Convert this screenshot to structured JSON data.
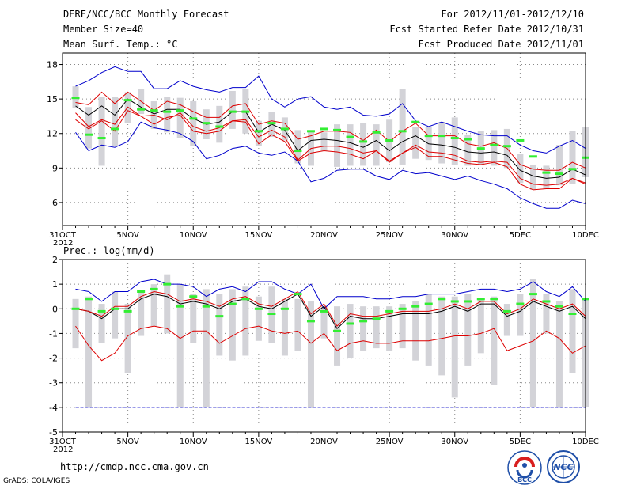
{
  "header": {
    "title": "DERF/NCC/BCC Monthly Forecast",
    "member_size": "Member Size=40",
    "variable": "Mean Surf. Temp.: °C",
    "period": "For 2012/11/01-2012/12/10",
    "start_date": "Fcst Started Refer Date 2012/10/31",
    "produced_date": "Fcst Produced Date 2012/11/01"
  },
  "footer": {
    "url": "http://cmdp.ncc.cma.gov.cn",
    "credit": "GrADS: COLA/IGES",
    "logo_left_text": "BCC",
    "logo_right_text": "NCC"
  },
  "colors": {
    "envelope": "#0000cc",
    "spread": "#dd0000",
    "mean": "#000000",
    "box": "#d3d3d8",
    "obs": "#33ee33",
    "grid": "#888888",
    "baseline": "#0000cc"
  },
  "chart_data": [
    {
      "type": "line",
      "title": "Mean Surf. Temp.: °C",
      "x_ticks": [
        "31OCT",
        "5NOV",
        "10NOV",
        "15NOV",
        "20NOV",
        "25NOV",
        "30NOV",
        "5DEC",
        "10DEC"
      ],
      "x_tick_days": [
        0,
        5,
        10,
        15,
        20,
        25,
        30,
        35,
        40
      ],
      "x_sub_label": "2012",
      "xlim": [
        0,
        40
      ],
      "ylim": [
        4,
        19
      ],
      "y_ticks": [
        6,
        9,
        12,
        15,
        18
      ],
      "day_start": 1,
      "series": [
        {
          "name": "max",
          "values": [
            12.1,
            10.5,
            11.0,
            10.8,
            11.3,
            13.0,
            12.5,
            12.3,
            12.0,
            11.3,
            9.8,
            10.1,
            10.7,
            10.9,
            10.3,
            10.1,
            10.4,
            9.6,
            7.8,
            8.1,
            8.8,
            8.9,
            8.9,
            8.3,
            8.0,
            8.8,
            8.5,
            8.6,
            8.3,
            8.0,
            8.3,
            7.9,
            7.6,
            7.2,
            6.4,
            5.9,
            5.5,
            5.5,
            6.2,
            5.9
          ]
        },
        {
          "name": "upper",
          "values": [
            16.1,
            16.6,
            17.3,
            17.8,
            17.4,
            17.4,
            15.9,
            15.9,
            16.6,
            16.1,
            15.8,
            15.6,
            16.0,
            16.0,
            17.0,
            15.0,
            14.3,
            15.0,
            15.2,
            14.3,
            14.1,
            14.3,
            13.6,
            13.5,
            13.7,
            14.6,
            13.1,
            12.6,
            13.0,
            12.6,
            12.2,
            11.9,
            11.8,
            11.8,
            11.0,
            10.5,
            10.3,
            10.9,
            11.4,
            10.7
          ]
        },
        {
          "name": "lower",
          "values": [
            13.2,
            12.4,
            13.1,
            12.2,
            14.0,
            13.5,
            12.8,
            13.4,
            13.6,
            12.2,
            12.0,
            12.2,
            13.1,
            13.0,
            11.1,
            11.9,
            11.3,
            9.6,
            10.3,
            10.5,
            10.4,
            10.2,
            9.8,
            10.5,
            9.5,
            10.3,
            10.8,
            10.0,
            10.0,
            9.7,
            9.4,
            9.3,
            9.5,
            9.1,
            7.6,
            7.1,
            7.2,
            7.2,
            8.1,
            7.6
          ]
        },
        {
          "name": "mean",
          "values": [
            14.4,
            13.6,
            14.4,
            13.6,
            15.0,
            14.3,
            13.7,
            14.1,
            14.1,
            13.3,
            12.8,
            13.0,
            13.9,
            13.9,
            12.1,
            12.8,
            12.3,
            10.5,
            11.4,
            11.5,
            11.4,
            11.2,
            10.8,
            11.4,
            10.5,
            11.3,
            11.8,
            11.1,
            11.0,
            10.8,
            10.4,
            10.3,
            10.4,
            10.1,
            8.8,
            8.3,
            8.1,
            8.2,
            8.9,
            8.4
          ]
        },
        {
          "name": "upper_spread",
          "values": [
            14.7,
            14.5,
            15.6,
            14.6,
            15.6,
            14.8,
            14.0,
            14.8,
            14.5,
            13.9,
            13.4,
            13.4,
            14.4,
            14.6,
            12.8,
            13.1,
            12.9,
            11.5,
            11.8,
            12.2,
            12.2,
            12.1,
            11.4,
            12.3,
            11.3,
            12.2,
            12.9,
            11.8,
            11.8,
            11.8,
            11.1,
            10.9,
            11.2,
            10.7,
            9.3,
            8.9,
            8.8,
            8.8,
            9.5,
            9.0
          ]
        },
        {
          "name": "lower_spread",
          "values": [
            13.8,
            12.6,
            13.2,
            12.8,
            14.3,
            13.5,
            13.6,
            13.2,
            13.8,
            12.6,
            12.2,
            12.5,
            13.1,
            13.2,
            11.7,
            12.3,
            11.7,
            9.7,
            10.7,
            10.9,
            10.9,
            10.7,
            10.3,
            10.5,
            9.6,
            10.3,
            11.0,
            10.4,
            10.3,
            10.1,
            9.6,
            9.5,
            9.6,
            9.5,
            8.1,
            7.6,
            7.5,
            7.6,
            8.1,
            7.7
          ]
        }
      ],
      "boxes": {
        "low": [
          14.2,
          10.7,
          9.2,
          10.9,
          12.9,
          13.7,
          12.4,
          12.1,
          11.6,
          10.9,
          11.5,
          11.2,
          12.4,
          12.0,
          10.9,
          11.7,
          11.4,
          9.4,
          9.2,
          10.5,
          9.1,
          9.2,
          9.2,
          9.2,
          9.5,
          9.3,
          9.8,
          9.7,
          9.4,
          9.3,
          9.2,
          9.3,
          9.2,
          9.0,
          7.7,
          7.1,
          7.2,
          7.5,
          7.6,
          8.2
        ],
        "high": [
          16.1,
          14.3,
          15.2,
          15.2,
          15.6,
          15.9,
          14.8,
          15.2,
          15.1,
          14.8,
          14.1,
          14.4,
          15.7,
          15.9,
          13.1,
          13.9,
          13.4,
          12.3,
          12.3,
          12.1,
          12.8,
          12.8,
          12.9,
          12.8,
          13.2,
          15.9,
          12.6,
          12.6,
          13.0,
          13.4,
          11.9,
          12.2,
          12.3,
          12.4,
          10.2,
          9.3,
          9.2,
          11.0,
          12.2,
          12.6
        ]
      },
      "observations": [
        15.1,
        11.9,
        11.6,
        12.4,
        14.9,
        14.1,
        14.0,
        13.9,
        14.0,
        13.3,
        12.9,
        12.6,
        13.9,
        13.9,
        12.2,
        12.9,
        12.4,
        10.5,
        12.2,
        12.4,
        12.3,
        11.7,
        11.3,
        12.1,
        11.4,
        12.2,
        13.0,
        11.8,
        11.8,
        11.6,
        11.5,
        10.7,
        11.0,
        10.9,
        11.4,
        10.0,
        8.6,
        8.5,
        8.9,
        9.9
      ]
    },
    {
      "type": "line",
      "title": "Prec.: log(mm/d)",
      "x_ticks": [
        "31OCT",
        "5NOV",
        "10NOV",
        "15NOV",
        "20NOV",
        "25NOV",
        "30NOV",
        "5DEC",
        "10DEC"
      ],
      "x_tick_days": [
        0,
        5,
        10,
        15,
        20,
        25,
        30,
        35,
        40
      ],
      "x_sub_label": "2012",
      "xlim": [
        0,
        40
      ],
      "ylim": [
        -5,
        2
      ],
      "y_ticks": [
        -5,
        -4,
        -3,
        -2,
        -1,
        0,
        1,
        2
      ],
      "day_start": 1,
      "baseline": -4,
      "series": [
        {
          "name": "max",
          "values": [
            0.8,
            0.7,
            0.3,
            0.7,
            0.7,
            1.1,
            1.2,
            1.0,
            1.0,
            0.9,
            0.5,
            0.8,
            0.9,
            0.7,
            1.1,
            1.1,
            0.8,
            0.6,
            1.0,
            0.0,
            0.5,
            0.5,
            0.5,
            0.4,
            0.4,
            0.5,
            0.5,
            0.6,
            0.6,
            0.6,
            0.7,
            0.8,
            0.8,
            0.7,
            0.8,
            1.1,
            0.7,
            0.5,
            0.9,
            0.3
          ]
        },
        {
          "name": "mean",
          "values": [
            0.0,
            -0.1,
            -0.4,
            0.0,
            0.0,
            0.4,
            0.6,
            0.5,
            0.2,
            0.3,
            0.2,
            0.0,
            0.3,
            0.4,
            0.1,
            0.0,
            0.3,
            0.6,
            -0.3,
            0.1,
            -0.8,
            -0.3,
            -0.4,
            -0.4,
            -0.3,
            -0.2,
            -0.2,
            -0.2,
            -0.1,
            0.1,
            -0.1,
            0.2,
            0.2,
            -0.3,
            -0.1,
            0.3,
            0.1,
            -0.1,
            0.1,
            -0.4
          ]
        },
        {
          "name": "upper_spread",
          "values": [
            0.0,
            -0.1,
            -0.3,
            0.1,
            0.1,
            0.5,
            0.7,
            0.6,
            0.3,
            0.4,
            0.3,
            0.1,
            0.4,
            0.5,
            0.2,
            0.1,
            0.4,
            0.7,
            -0.2,
            0.2,
            -0.7,
            -0.2,
            -0.3,
            -0.3,
            -0.2,
            -0.1,
            -0.1,
            -0.1,
            0.0,
            0.2,
            0.0,
            0.3,
            0.3,
            -0.2,
            0.0,
            0.4,
            0.2,
            0.0,
            0.2,
            -0.3
          ]
        },
        {
          "name": "min",
          "values": [
            -0.7,
            -1.5,
            -2.1,
            -1.8,
            -1.1,
            -0.8,
            -0.7,
            -0.8,
            -1.2,
            -0.9,
            -0.9,
            -1.4,
            -1.1,
            -0.8,
            -0.7,
            -0.9,
            -1.0,
            -0.9,
            -1.4,
            -1.0,
            -1.7,
            -1.4,
            -1.3,
            -1.4,
            -1.4,
            -1.3,
            -1.3,
            -1.3,
            -1.2,
            -1.1,
            -1.1,
            -1.0,
            -0.8,
            -1.7,
            -1.5,
            -1.3,
            -0.9,
            -1.2,
            -1.8,
            -1.5
          ]
        }
      ],
      "boxes": {
        "low": [
          -1.6,
          -4.0,
          -1.4,
          -1.2,
          -2.6,
          -1.1,
          -0.7,
          -1.0,
          -4.0,
          -1.4,
          -4.0,
          -1.9,
          -2.1,
          -1.9,
          -1.3,
          -1.4,
          -1.9,
          -1.7,
          -4.0,
          -1.2,
          -2.3,
          -2.0,
          -1.7,
          -1.6,
          -1.7,
          -1.6,
          -2.1,
          -2.3,
          -2.7,
          -3.6,
          -2.3,
          -1.8,
          -3.1,
          -1.1,
          -1.1,
          -4.0,
          -1.0,
          -4.0,
          -2.6,
          -4.0
        ],
        "high": [
          0.4,
          0.5,
          0.2,
          0.7,
          0.2,
          0.7,
          1.0,
          1.4,
          1.0,
          0.6,
          0.8,
          0.6,
          0.8,
          0.9,
          0.5,
          0.9,
          0.4,
          0.4,
          0.3,
          0.1,
          0.1,
          0.2,
          0.1,
          0.1,
          0.1,
          0.2,
          0.3,
          0.6,
          0.5,
          0.5,
          0.6,
          0.4,
          0.5,
          0.2,
          0.6,
          1.2,
          0.6,
          0.3,
          0.8,
          0.4
        ]
      },
      "observations": [
        0.0,
        0.4,
        -0.1,
        0.0,
        -0.1,
        0.7,
        0.8,
        1.0,
        0.1,
        0.5,
        0.1,
        -0.3,
        0.2,
        0.4,
        0.0,
        -0.2,
        0.0,
        0.6,
        -0.5,
        -0.1,
        -0.9,
        -0.6,
        -0.5,
        -0.4,
        -0.1,
        0.0,
        0.1,
        0.2,
        0.4,
        0.3,
        0.3,
        0.4,
        0.4,
        -0.1,
        0.2,
        0.6,
        0.3,
        0.1,
        -0.2,
        0.4
      ]
    }
  ]
}
